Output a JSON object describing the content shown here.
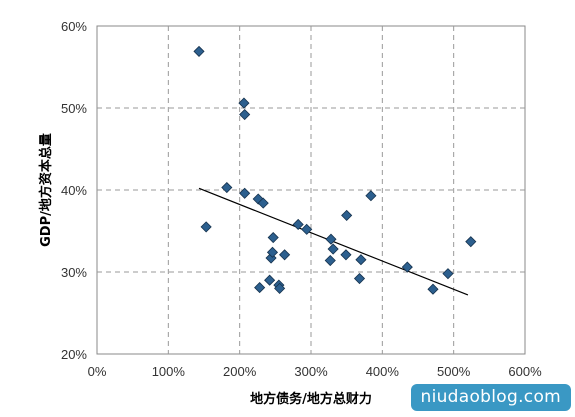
{
  "chart_data": {
    "type": "scatter",
    "title": "",
    "xlabel": "地方债务/地方总财力",
    "ylabel": "GDP/地方资本总量",
    "xlim": [
      0,
      6
    ],
    "ylim": [
      0.2,
      0.6
    ],
    "x_ticks": [
      "0%",
      "100%",
      "200%",
      "300%",
      "400%",
      "500%",
      "600%"
    ],
    "y_ticks": [
      "20%",
      "30%",
      "40%",
      "50%",
      "60%"
    ],
    "grid": true,
    "marker_color": "#2c5f8e",
    "points": [
      {
        "x": 1.43,
        "y": 0.569
      },
      {
        "x": 1.53,
        "y": 0.355
      },
      {
        "x": 1.82,
        "y": 0.403
      },
      {
        "x": 2.06,
        "y": 0.506
      },
      {
        "x": 2.07,
        "y": 0.492
      },
      {
        "x": 2.07,
        "y": 0.396
      },
      {
        "x": 2.26,
        "y": 0.389
      },
      {
        "x": 2.33,
        "y": 0.384
      },
      {
        "x": 2.28,
        "y": 0.281
      },
      {
        "x": 2.42,
        "y": 0.29
      },
      {
        "x": 2.44,
        "y": 0.317
      },
      {
        "x": 2.46,
        "y": 0.324
      },
      {
        "x": 2.47,
        "y": 0.342
      },
      {
        "x": 2.55,
        "y": 0.284
      },
      {
        "x": 2.56,
        "y": 0.28
      },
      {
        "x": 2.63,
        "y": 0.321
      },
      {
        "x": 2.82,
        "y": 0.358
      },
      {
        "x": 2.94,
        "y": 0.352
      },
      {
        "x": 3.27,
        "y": 0.314
      },
      {
        "x": 3.28,
        "y": 0.34
      },
      {
        "x": 3.31,
        "y": 0.328
      },
      {
        "x": 3.49,
        "y": 0.321
      },
      {
        "x": 3.5,
        "y": 0.369
      },
      {
        "x": 3.68,
        "y": 0.292
      },
      {
        "x": 3.7,
        "y": 0.315
      },
      {
        "x": 3.84,
        "y": 0.393
      },
      {
        "x": 4.35,
        "y": 0.306
      },
      {
        "x": 4.71,
        "y": 0.279
      },
      {
        "x": 4.92,
        "y": 0.298
      },
      {
        "x": 5.24,
        "y": 0.337
      }
    ],
    "trendline": {
      "x": [
        1.43,
        5.2
      ],
      "y": [
        0.402,
        0.272
      ]
    }
  },
  "watermark": {
    "text": "niudaoblog.com"
  }
}
